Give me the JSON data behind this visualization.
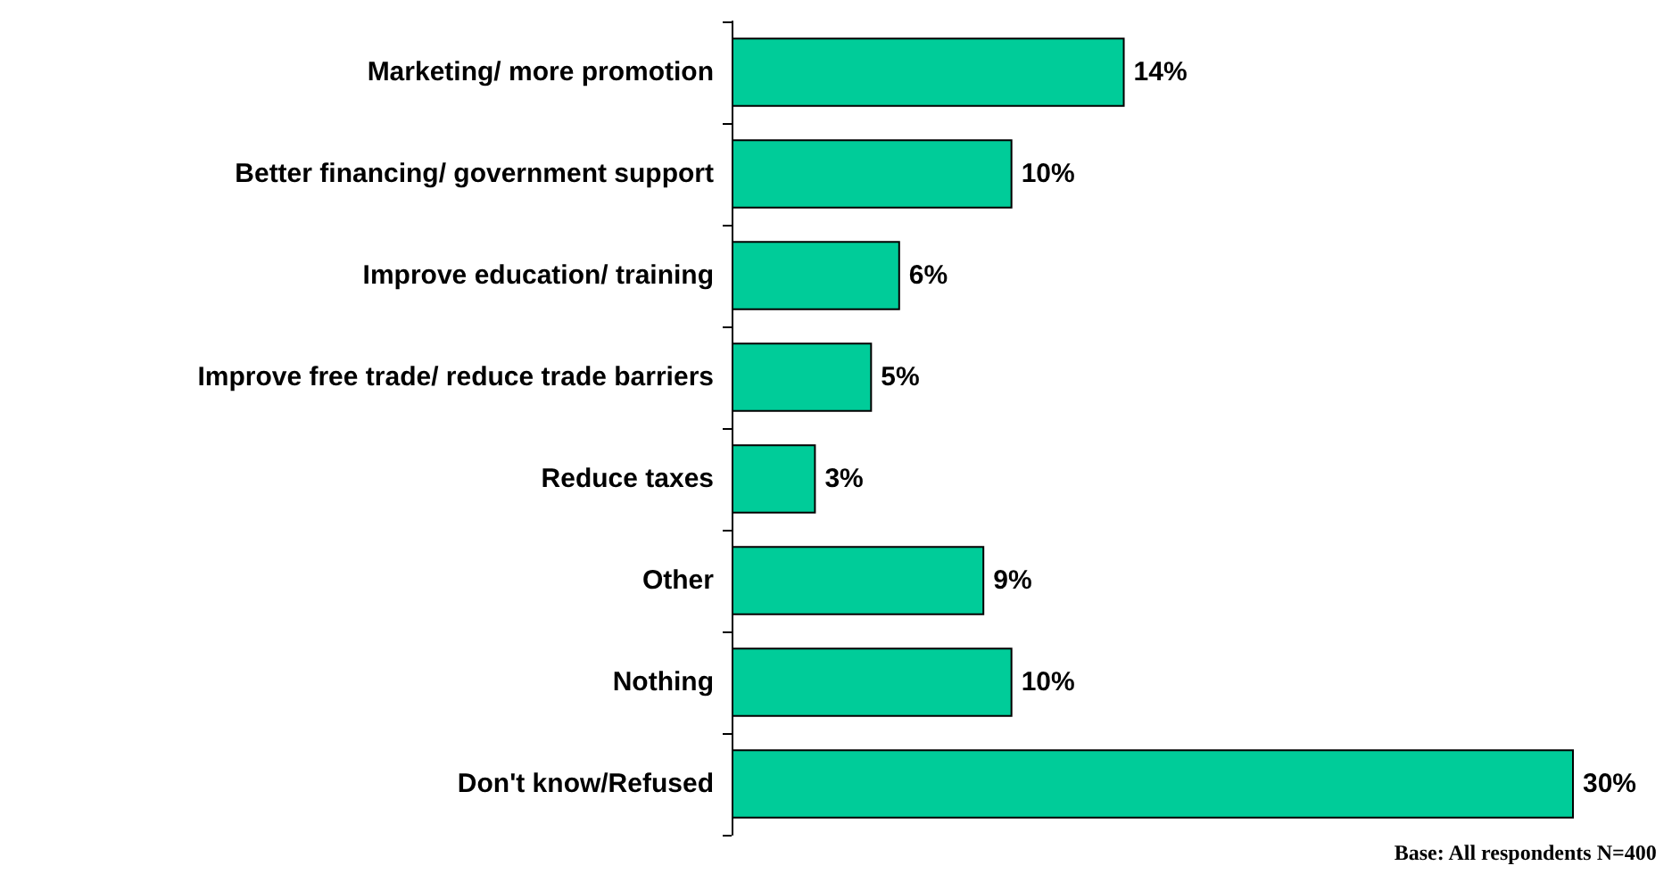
{
  "chart_data": {
    "type": "bar",
    "orientation": "horizontal",
    "categories": [
      "Marketing/ more promotion",
      "Better financing/ government support",
      "Improve education/ training",
      "Improve free trade/ reduce trade barriers",
      "Reduce taxes",
      "Other",
      "Nothing",
      "Don't know/Refused"
    ],
    "values": [
      14,
      10,
      6,
      5,
      3,
      9,
      10,
      30
    ],
    "value_labels": [
      "14%",
      "10%",
      "6%",
      "5%",
      "3%",
      "9%",
      "10%",
      "30%"
    ],
    "color": "#00cc99",
    "annotations": [
      "Base: All respondents N=400"
    ]
  }
}
